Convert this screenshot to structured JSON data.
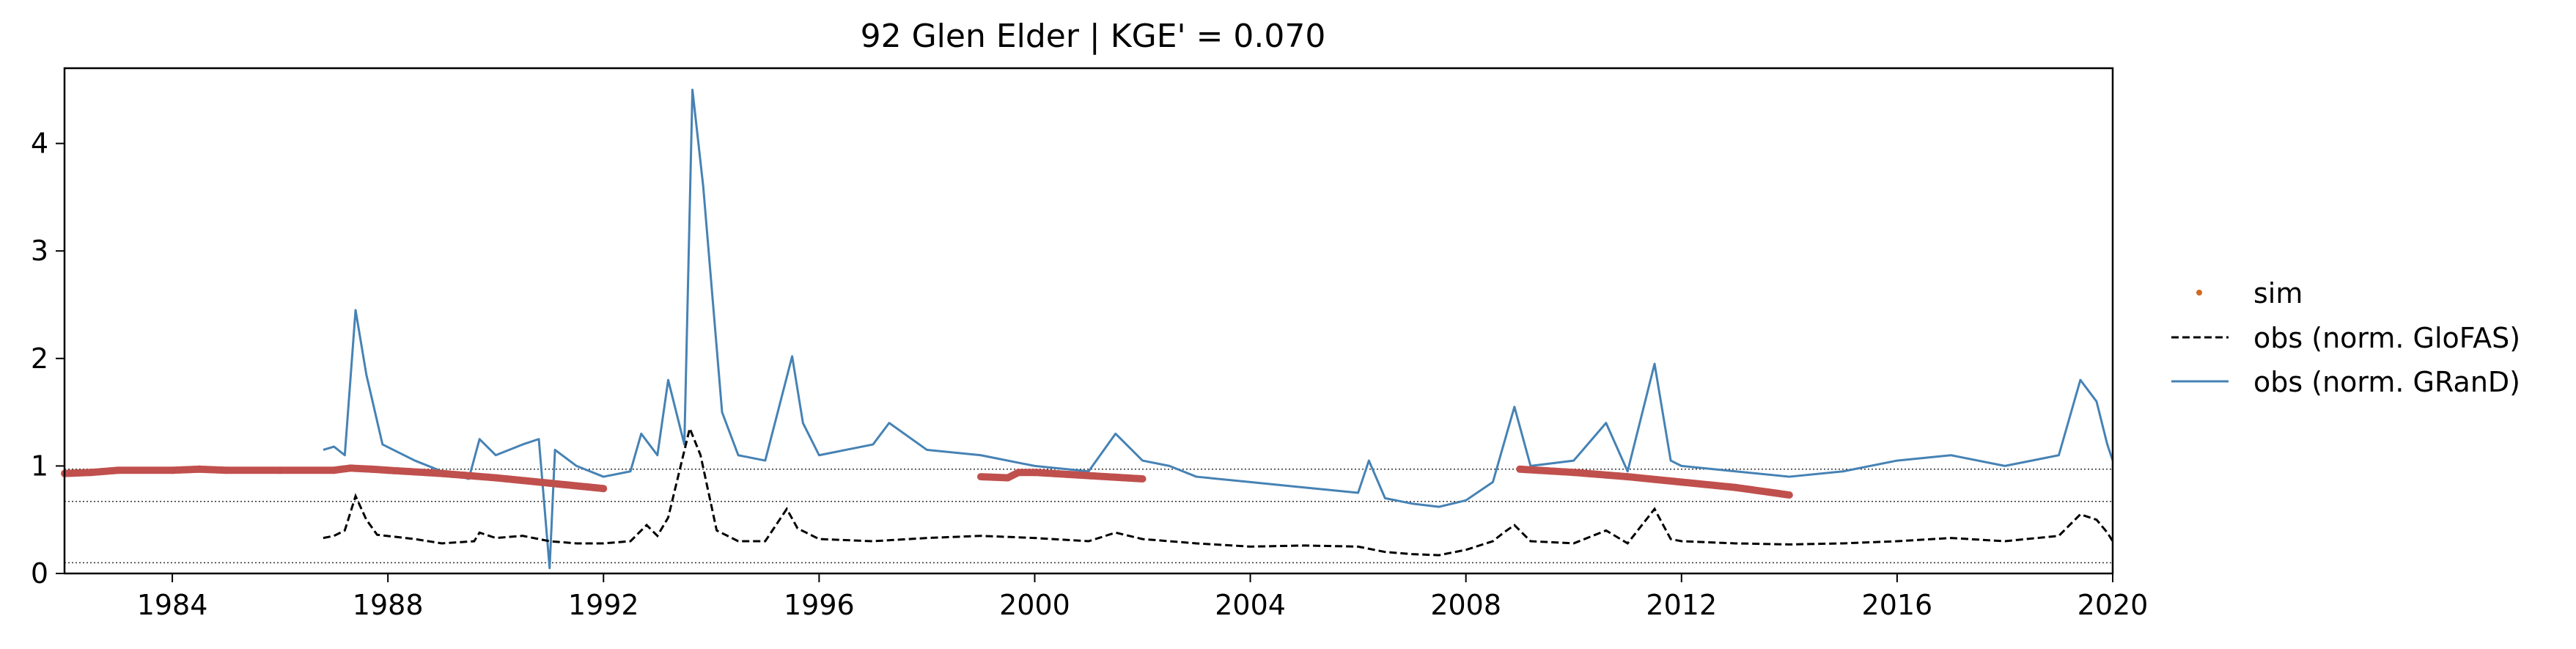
{
  "chart_data": {
    "type": "line",
    "title": "92  Glen Elder | KGE' = 0.070",
    "xlabel": "",
    "ylabel": "",
    "xlim": [
      1982.0,
      2020.0
    ],
    "ylim": [
      0.0,
      4.7
    ],
    "x_ticks": [
      1984,
      1988,
      1992,
      1996,
      2000,
      2004,
      2008,
      2012,
      2016,
      2020
    ],
    "x_tick_labels": [
      "1984",
      "1988",
      "1992",
      "1996",
      "2000",
      "2004",
      "2008",
      "2012",
      "2016",
      "2020"
    ],
    "y_ticks": [
      0,
      1,
      2,
      3,
      4
    ],
    "y_tick_labels": [
      "0",
      "1",
      "2",
      "3",
      "4"
    ],
    "reference_lines": [
      0.97,
      0.67,
      0.1
    ],
    "grid": false,
    "legend_position": "outside-right",
    "series": [
      {
        "name": "sim",
        "style": "points",
        "color": "#c0504d",
        "legend_marker_color": "#d2691e",
        "segments": [
          [
            [
              1982.0,
              0.93
            ],
            [
              1982.5,
              0.94
            ],
            [
              1983.0,
              0.96
            ],
            [
              1984.0,
              0.96
            ],
            [
              1984.5,
              0.97
            ],
            [
              1985.0,
              0.96
            ],
            [
              1986.0,
              0.96
            ],
            [
              1987.0,
              0.96
            ],
            [
              1987.3,
              0.98
            ],
            [
              1987.7,
              0.97
            ],
            [
              1988.0,
              0.96
            ],
            [
              1989.0,
              0.93
            ],
            [
              1990.0,
              0.89
            ],
            [
              1991.0,
              0.84
            ],
            [
              1992.0,
              0.79
            ]
          ],
          [
            [
              1999.0,
              0.9
            ],
            [
              1999.5,
              0.89
            ],
            [
              1999.7,
              0.94
            ],
            [
              2000.0,
              0.94
            ],
            [
              2001.0,
              0.91
            ],
            [
              2002.0,
              0.88
            ]
          ],
          [
            [
              2009.0,
              0.97
            ],
            [
              2010.0,
              0.94
            ],
            [
              2011.0,
              0.9
            ],
            [
              2012.0,
              0.85
            ],
            [
              2013.0,
              0.8
            ],
            [
              2014.0,
              0.73
            ]
          ]
        ]
      },
      {
        "name": "obs (norm. GloFAS)",
        "style": "dashed",
        "color": "#000000",
        "points": [
          [
            1986.8,
            0.33
          ],
          [
            1987.0,
            0.35
          ],
          [
            1987.2,
            0.4
          ],
          [
            1987.4,
            0.72
          ],
          [
            1987.6,
            0.5
          ],
          [
            1987.8,
            0.36
          ],
          [
            1988.5,
            0.32
          ],
          [
            1989.0,
            0.28
          ],
          [
            1989.6,
            0.3
          ],
          [
            1989.7,
            0.38
          ],
          [
            1990.0,
            0.33
          ],
          [
            1990.5,
            0.35
          ],
          [
            1991.0,
            0.3
          ],
          [
            1991.5,
            0.28
          ],
          [
            1992.0,
            0.28
          ],
          [
            1992.5,
            0.3
          ],
          [
            1992.8,
            0.45
          ],
          [
            1993.0,
            0.35
          ],
          [
            1993.2,
            0.52
          ],
          [
            1993.6,
            1.35
          ],
          [
            1993.8,
            1.1
          ],
          [
            1994.1,
            0.4
          ],
          [
            1994.5,
            0.3
          ],
          [
            1995.0,
            0.3
          ],
          [
            1995.4,
            0.6
          ],
          [
            1995.6,
            0.42
          ],
          [
            1996.0,
            0.32
          ],
          [
            1997.0,
            0.3
          ],
          [
            1998.0,
            0.33
          ],
          [
            1999.0,
            0.35
          ],
          [
            2000.0,
            0.33
          ],
          [
            2001.0,
            0.3
          ],
          [
            2001.5,
            0.38
          ],
          [
            2002.0,
            0.32
          ],
          [
            2003.0,
            0.28
          ],
          [
            2004.0,
            0.25
          ],
          [
            2005.0,
            0.26
          ],
          [
            2006.0,
            0.25
          ],
          [
            2006.5,
            0.2
          ],
          [
            2007.0,
            0.18
          ],
          [
            2007.5,
            0.17
          ],
          [
            2008.0,
            0.22
          ],
          [
            2008.5,
            0.3
          ],
          [
            2008.7,
            0.38
          ],
          [
            2008.9,
            0.45
          ],
          [
            2009.2,
            0.3
          ],
          [
            2010.0,
            0.28
          ],
          [
            2010.6,
            0.4
          ],
          [
            2011.0,
            0.28
          ],
          [
            2011.5,
            0.6
          ],
          [
            2011.8,
            0.32
          ],
          [
            2012.0,
            0.3
          ],
          [
            2013.0,
            0.28
          ],
          [
            2014.0,
            0.27
          ],
          [
            2015.0,
            0.28
          ],
          [
            2016.0,
            0.3
          ],
          [
            2017.0,
            0.33
          ],
          [
            2018.0,
            0.3
          ],
          [
            2019.0,
            0.35
          ],
          [
            2019.4,
            0.55
          ],
          [
            2019.7,
            0.5
          ],
          [
            2019.9,
            0.38
          ],
          [
            2020.0,
            0.3
          ]
        ]
      },
      {
        "name": "obs (norm. GRanD)",
        "style": "solid",
        "color": "#4682b4",
        "points": [
          [
            1986.8,
            1.15
          ],
          [
            1987.0,
            1.18
          ],
          [
            1987.2,
            1.1
          ],
          [
            1987.4,
            2.45
          ],
          [
            1987.6,
            1.85
          ],
          [
            1987.9,
            1.2
          ],
          [
            1988.5,
            1.05
          ],
          [
            1989.0,
            0.95
          ],
          [
            1989.5,
            0.88
          ],
          [
            1989.7,
            1.25
          ],
          [
            1990.0,
            1.1
          ],
          [
            1990.5,
            1.2
          ],
          [
            1990.8,
            1.25
          ],
          [
            1991.0,
            0.05
          ],
          [
            1991.1,
            1.15
          ],
          [
            1991.5,
            1.0
          ],
          [
            1992.0,
            0.9
          ],
          [
            1992.5,
            0.95
          ],
          [
            1992.7,
            1.3
          ],
          [
            1993.0,
            1.1
          ],
          [
            1993.2,
            1.8
          ],
          [
            1993.5,
            1.2
          ],
          [
            1993.65,
            4.5
          ],
          [
            1993.85,
            3.6
          ],
          [
            1994.2,
            1.5
          ],
          [
            1994.5,
            1.1
          ],
          [
            1995.0,
            1.05
          ],
          [
            1995.5,
            2.02
          ],
          [
            1995.7,
            1.4
          ],
          [
            1996.0,
            1.1
          ],
          [
            1997.0,
            1.2
          ],
          [
            1997.3,
            1.4
          ],
          [
            1998.0,
            1.15
          ],
          [
            1999.0,
            1.1
          ],
          [
            2000.0,
            1.0
          ],
          [
            2001.0,
            0.95
          ],
          [
            2001.5,
            1.3
          ],
          [
            2002.0,
            1.05
          ],
          [
            2002.5,
            1.0
          ],
          [
            2003.0,
            0.9
          ],
          [
            2004.0,
            0.85
          ],
          [
            2005.0,
            0.8
          ],
          [
            2006.0,
            0.75
          ],
          [
            2006.2,
            1.05
          ],
          [
            2006.5,
            0.7
          ],
          [
            2007.0,
            0.65
          ],
          [
            2007.5,
            0.62
          ],
          [
            2008.0,
            0.68
          ],
          [
            2008.5,
            0.85
          ],
          [
            2008.7,
            1.2
          ],
          [
            2008.9,
            1.55
          ],
          [
            2009.2,
            1.0
          ],
          [
            2010.0,
            1.05
          ],
          [
            2010.6,
            1.4
          ],
          [
            2011.0,
            0.95
          ],
          [
            2011.5,
            1.95
          ],
          [
            2011.8,
            1.05
          ],
          [
            2012.0,
            1.0
          ],
          [
            2013.0,
            0.95
          ],
          [
            2014.0,
            0.9
          ],
          [
            2015.0,
            0.95
          ],
          [
            2016.0,
            1.05
          ],
          [
            2017.0,
            1.1
          ],
          [
            2018.0,
            1.0
          ],
          [
            2019.0,
            1.1
          ],
          [
            2019.4,
            1.8
          ],
          [
            2019.7,
            1.6
          ],
          [
            2019.9,
            1.2
          ],
          [
            2020.0,
            1.05
          ]
        ]
      }
    ]
  }
}
